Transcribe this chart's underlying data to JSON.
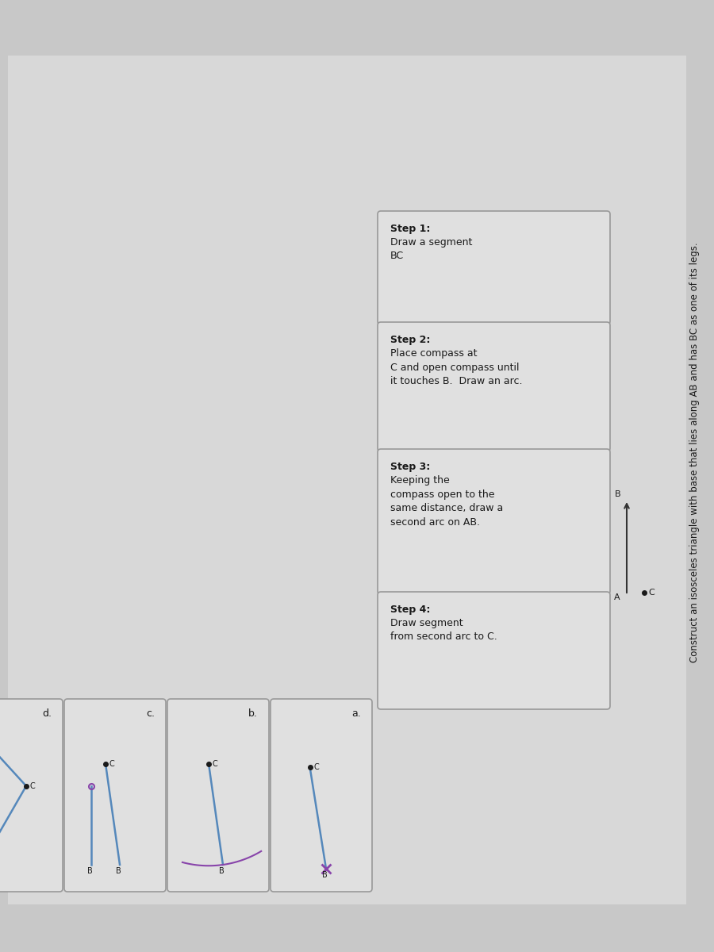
{
  "bg_color": "#c8c8c8",
  "page_color": "#dcdcdc",
  "box_color": "#e0e0e0",
  "box_edge_color": "#999999",
  "text_color": "#1a1a1a",
  "line_color_blue": "#5588bb",
  "line_color_dark": "#333333",
  "line_color_purple": "#8844aa",
  "title": "Construct an isosceles triangle with base that lies along AB and has BC as one of its legs.",
  "step1_bold": "Step 1: ",
  "step1_text": "Draw a segment\nBC",
  "step2_bold": "Step 2: ",
  "step2_text": "Place compass at\nC and open compass until\nit touches B.  Draw an arc.",
  "step3_bold": "Step 3: ",
  "step3_text": "Keeping the\ncompass open to the\nsame distance, draw a\nsecond arc on AB.",
  "step4_bold": "Step 4: ",
  "step4_text": "Draw segment\nfrom second arc to C.",
  "diag_labels": [
    "a.",
    "b.",
    "c.",
    "d."
  ]
}
